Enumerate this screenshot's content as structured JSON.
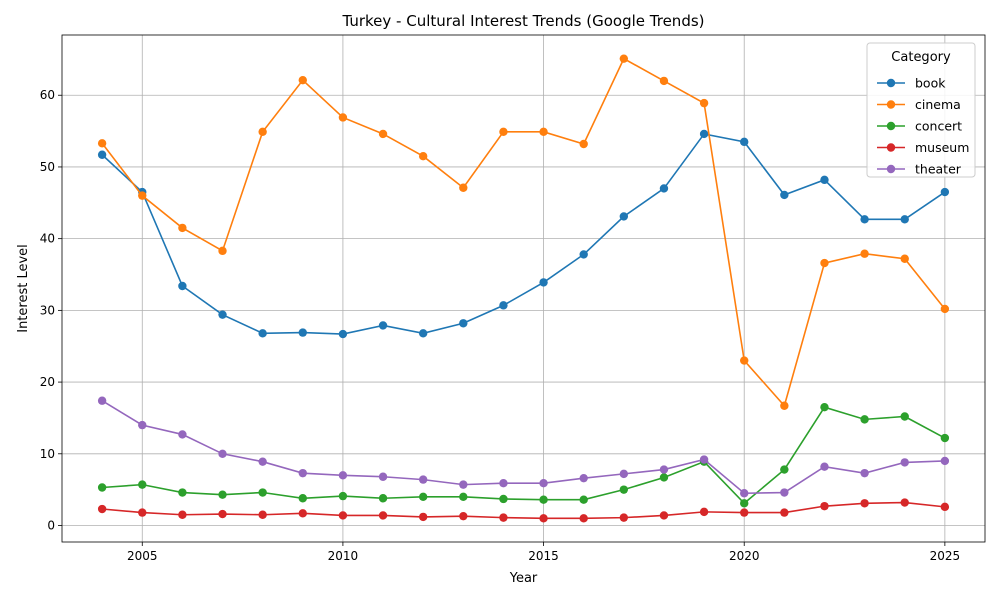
{
  "chart_data": {
    "type": "line",
    "title": "Turkey - Cultural Interest Trends (Google Trends)",
    "xlabel": "Year",
    "ylabel": "Interest Level",
    "x": [
      2004,
      2005,
      2006,
      2007,
      2008,
      2009,
      2010,
      2011,
      2012,
      2013,
      2014,
      2015,
      2016,
      2017,
      2018,
      2019,
      2020,
      2021,
      2022,
      2023,
      2024,
      2025
    ],
    "xlim": [
      2003,
      2026
    ],
    "ylim": [
      -2.3,
      68.4
    ],
    "xticks": [
      2005,
      2010,
      2015,
      2020,
      2025
    ],
    "yticks": [
      0,
      10,
      20,
      30,
      40,
      50,
      60
    ],
    "grid": true,
    "legend": {
      "title": "Category",
      "placement": "top-right"
    },
    "series": [
      {
        "name": "book",
        "color": "#1f77b4",
        "values": [
          51.7,
          46.5,
          33.4,
          29.4,
          26.8,
          26.9,
          26.7,
          27.9,
          26.8,
          28.2,
          30.7,
          33.9,
          37.8,
          43.1,
          47.0,
          54.6,
          53.5,
          46.1,
          48.2,
          42.7,
          42.7,
          46.5
        ]
      },
      {
        "name": "cinema",
        "color": "#ff7f0e",
        "values": [
          53.3,
          46.0,
          41.5,
          38.3,
          54.9,
          62.1,
          56.9,
          54.6,
          51.5,
          47.1,
          54.9,
          54.9,
          53.2,
          65.1,
          62.0,
          58.9,
          23.0,
          16.7,
          36.6,
          37.9,
          37.2,
          30.2
        ]
      },
      {
        "name": "concert",
        "color": "#2ca02c",
        "values": [
          5.3,
          5.7,
          4.6,
          4.3,
          4.6,
          3.8,
          4.1,
          3.8,
          4.0,
          4.0,
          3.7,
          3.6,
          3.6,
          5.0,
          6.7,
          8.9,
          3.1,
          7.8,
          16.5,
          14.8,
          15.2,
          12.2
        ]
      },
      {
        "name": "museum",
        "color": "#d62728",
        "values": [
          2.3,
          1.8,
          1.5,
          1.6,
          1.5,
          1.7,
          1.4,
          1.4,
          1.2,
          1.3,
          1.1,
          1.0,
          1.0,
          1.1,
          1.4,
          1.9,
          1.8,
          1.8,
          2.7,
          3.1,
          3.2,
          2.6
        ]
      },
      {
        "name": "theater",
        "color": "#9467bd",
        "values": [
          17.4,
          14.0,
          12.7,
          10.0,
          8.9,
          7.3,
          7.0,
          6.8,
          6.4,
          5.7,
          5.9,
          5.9,
          6.6,
          7.2,
          7.8,
          9.2,
          4.5,
          4.6,
          8.2,
          7.3,
          8.8,
          9.0
        ]
      }
    ]
  }
}
